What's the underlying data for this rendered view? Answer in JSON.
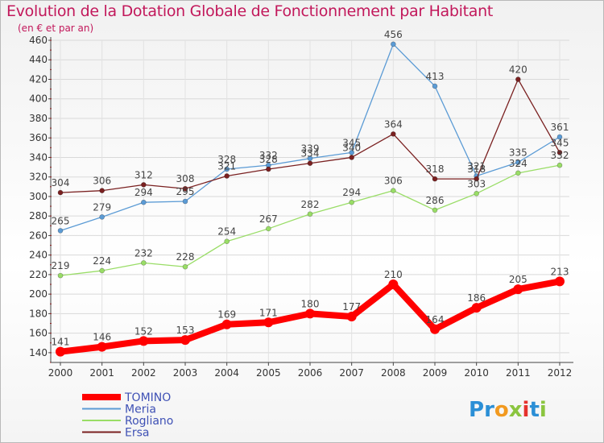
{
  "title": "Evolution de la Dotation Globale de Fonctionnement par Habitant",
  "subtitle": "(en € et par an)",
  "logo": {
    "text": "Proxiti",
    "letters": [
      "P",
      "r",
      "o",
      "x",
      "i",
      "t",
      "i"
    ],
    "colors": [
      "#2b8fd6",
      "#2b8fd6",
      "#f29a1f",
      "#8bc53f",
      "#e5322d",
      "#2b8fd6",
      "#8bc53f"
    ]
  },
  "chart_data": {
    "type": "line",
    "title": "Evolution de la Dotation Globale de Fonctionnement par Habitant",
    "subtitle": "(en € et par an)",
    "xlabel": "",
    "ylabel": "",
    "ylim": [
      130,
      460
    ],
    "yticks": [
      140,
      160,
      180,
      200,
      220,
      240,
      260,
      280,
      300,
      320,
      340,
      360,
      380,
      400,
      420,
      440,
      460
    ],
    "grid": true,
    "legend_position": "bottom-left",
    "x": [
      "2000",
      "2001",
      "2002",
      "2003",
      "2004",
      "2005",
      "2006",
      "2007",
      "2008",
      "2009",
      "2010",
      "2011",
      "2012"
    ],
    "series": [
      {
        "name": "TOMINO",
        "color": "#ff0000",
        "width": 8,
        "values": [
          141,
          146,
          152,
          153,
          169,
          171,
          180,
          177,
          210,
          164,
          186,
          205,
          213
        ]
      },
      {
        "name": "Meria",
        "color": "#5b9bd5",
        "width": 1.3,
        "values": [
          265,
          279,
          294,
          295,
          328,
          332,
          339,
          345,
          456,
          413,
          321,
          335,
          361
        ]
      },
      {
        "name": "Rogliano",
        "color": "#99dd66",
        "width": 1.3,
        "values": [
          219,
          224,
          232,
          228,
          254,
          267,
          282,
          294,
          306,
          286,
          303,
          324,
          332
        ]
      },
      {
        "name": "Ersa",
        "color": "#7a2020",
        "width": 1.3,
        "values": [
          304,
          306,
          312,
          308,
          321,
          328,
          334,
          340,
          364,
          318,
          318,
          420,
          345
        ]
      }
    ]
  }
}
